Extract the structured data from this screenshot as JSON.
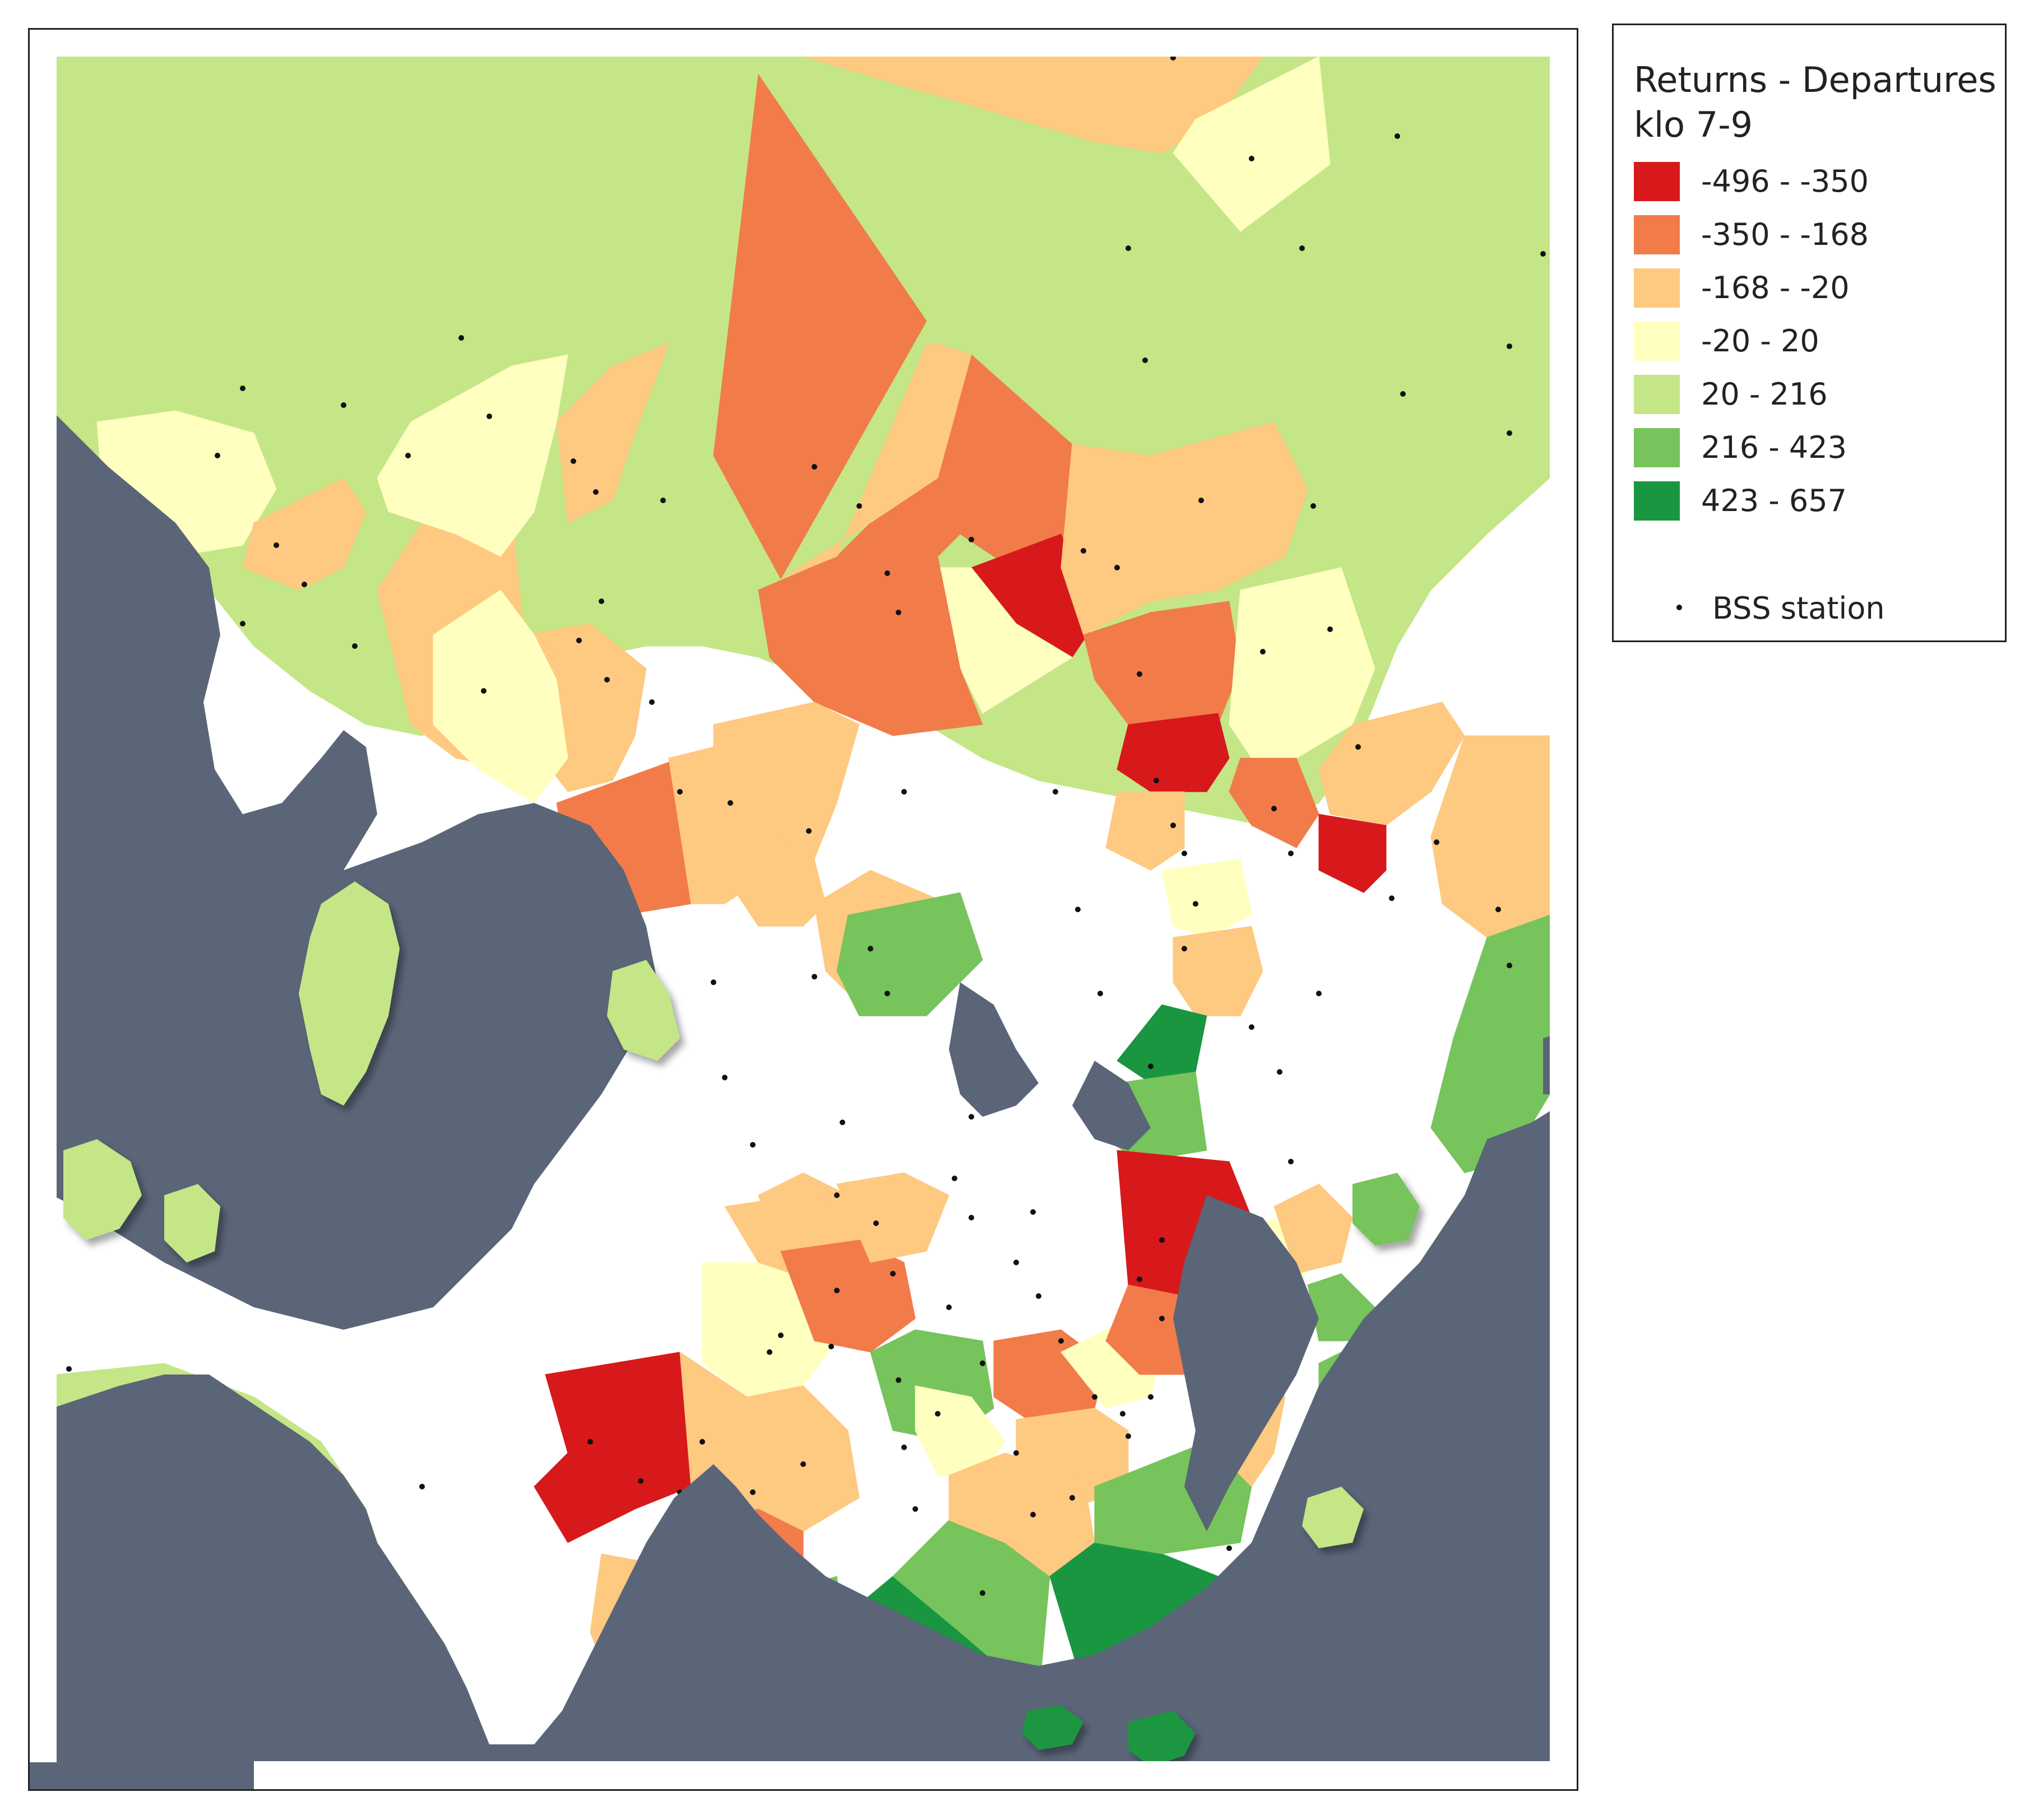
{
  "legend": {
    "title": "Returns - Departures\nklo 7-9",
    "classes": [
      {
        "label": "-496 - -350",
        "color": "#d7191c"
      },
      {
        "label": "-350 - -168",
        "color": "#f17c4a"
      },
      {
        "label": "-168 - -20",
        "color": "#fec980"
      },
      {
        "label": "-20 - 20",
        "color": "#ffffc0"
      },
      {
        "label": "20 - 216",
        "color": "#c4e687"
      },
      {
        "label": "216 - 423",
        "color": "#77c35c"
      },
      {
        "label": "423 - 657",
        "color": "#1a9641"
      }
    ],
    "station_label": "BSS station"
  },
  "colors": {
    "water": "#5a6578",
    "land": "#c4e687",
    "station": "#111111",
    "frame": "#222222"
  }
}
